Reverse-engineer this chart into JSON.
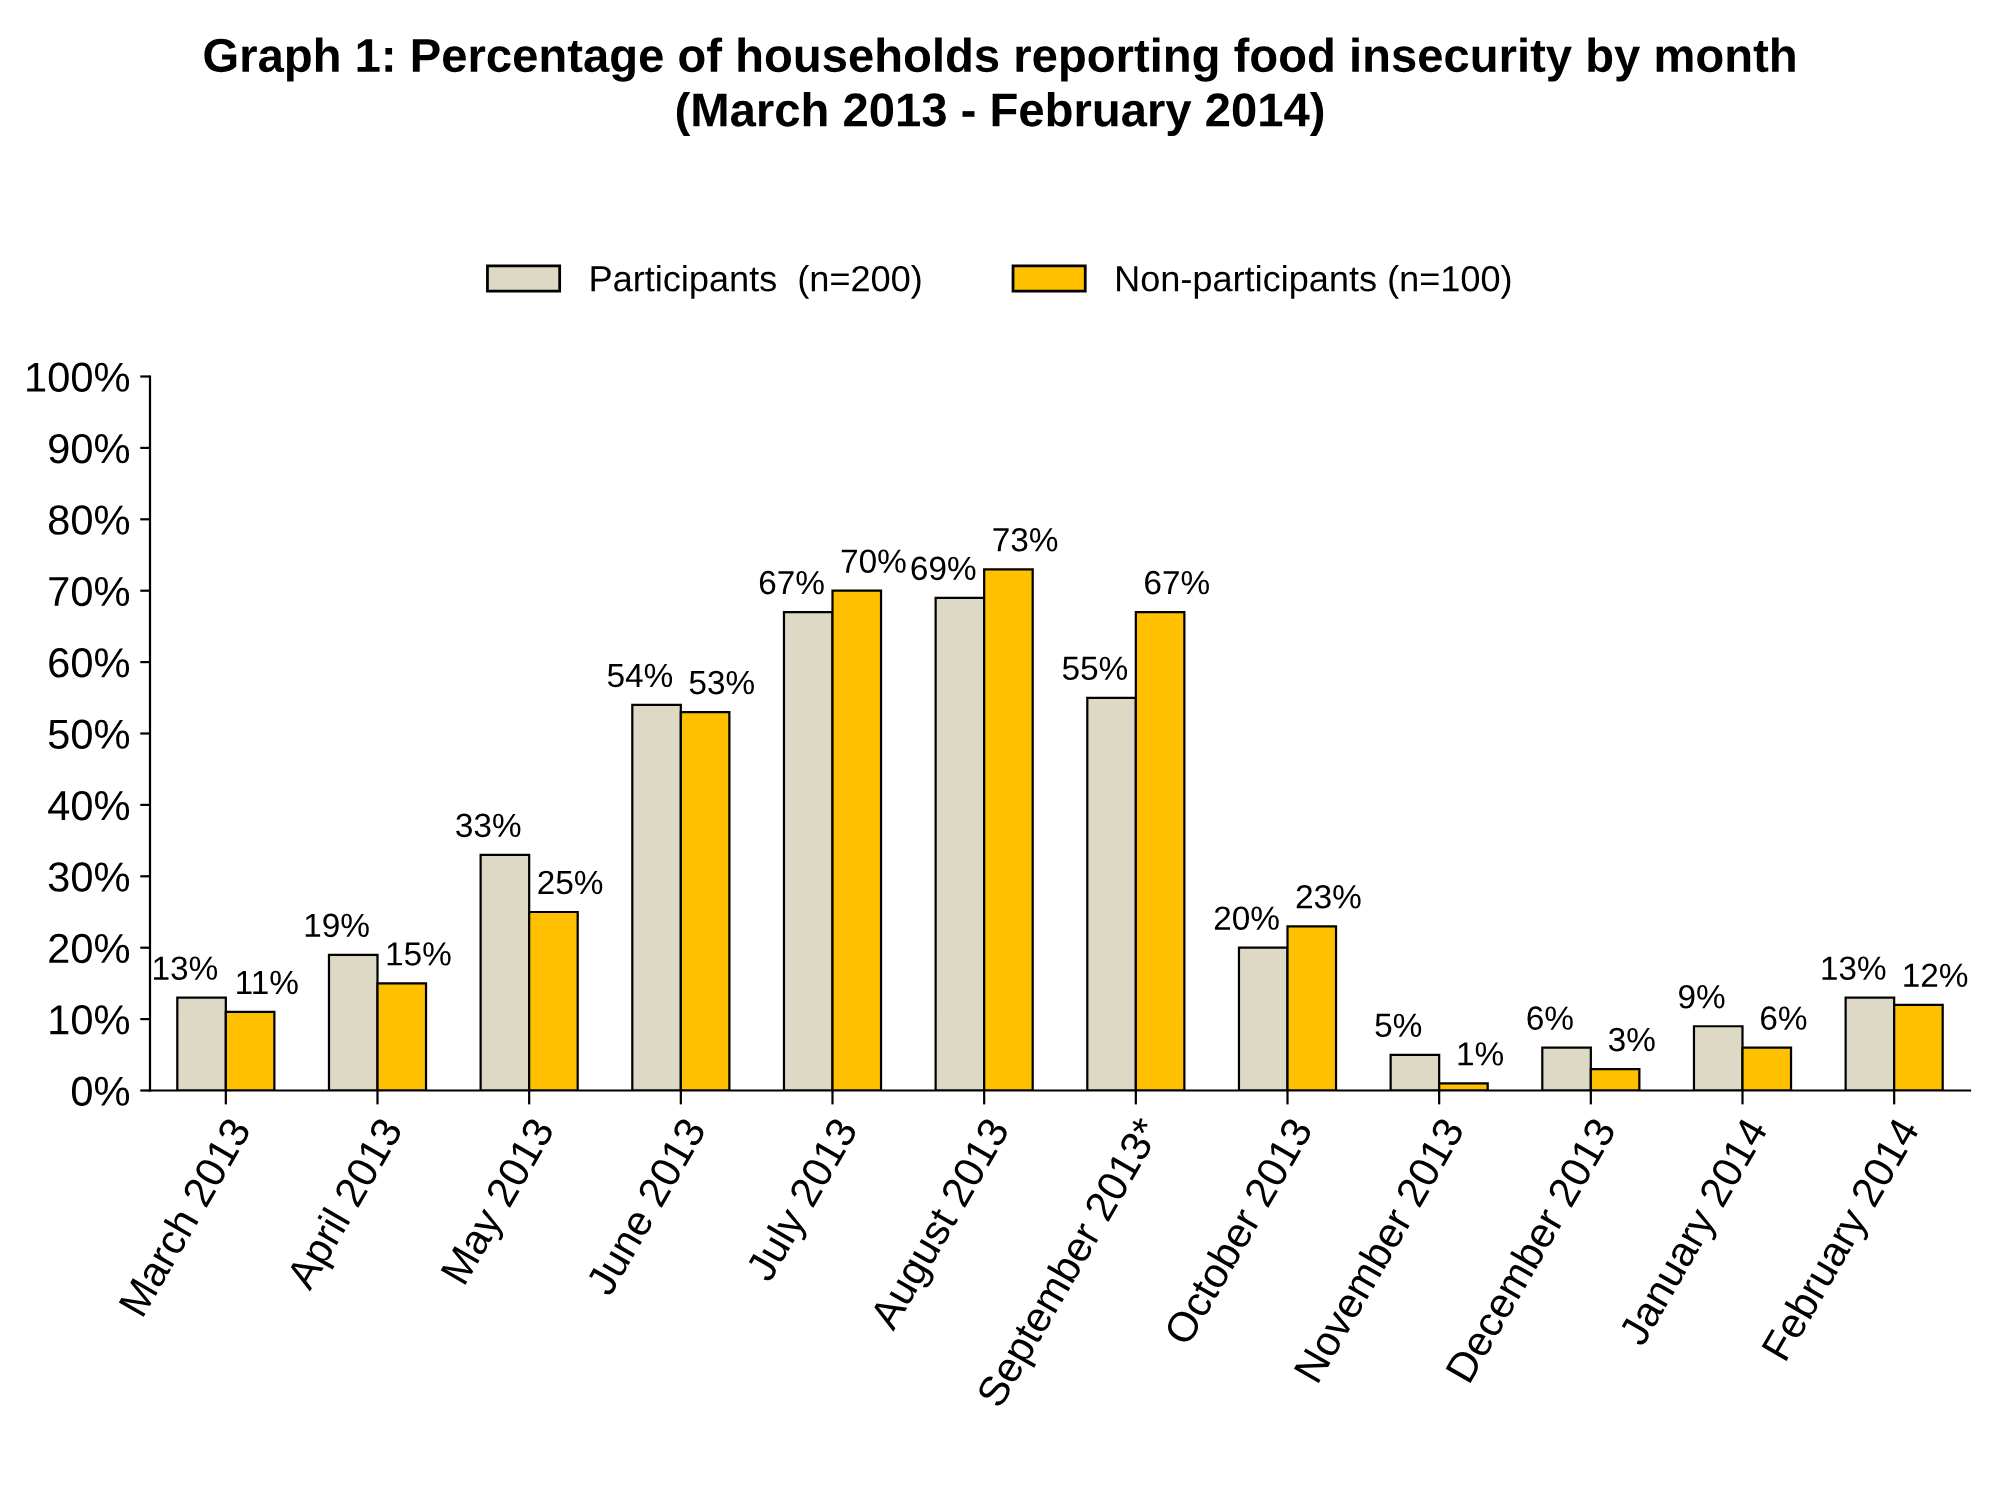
{
  "chart_data": {
    "type": "bar",
    "title": "Graph 1: Percentage of households reporting food insecurity by month\n(March 2013 - February 2014)",
    "categories": [
      "March 2013",
      "April 2013",
      "May 2013",
      "June 2013",
      "July 2013",
      "August 2013",
      "September 2013*",
      "October 2013",
      "November 2013",
      "December 2013",
      "January 2014",
      "February 2014"
    ],
    "series": [
      {
        "name": "Participants  (n=200)",
        "color": "#ddd9c4",
        "values": [
          13,
          19,
          33,
          54,
          67,
          69,
          55,
          20,
          5,
          6,
          9,
          13
        ],
        "value_labels": [
          "13%",
          "19%",
          "33%",
          "54%",
          "67%",
          "69%",
          "55%",
          "20%",
          "5%",
          "6%",
          "9%",
          "13%"
        ]
      },
      {
        "name": "Non-participants (n=100)",
        "color": "#ffc000",
        "values": [
          11,
          15,
          25,
          53,
          70,
          73,
          67,
          23,
          1,
          3,
          6,
          12
        ],
        "value_labels": [
          "11%",
          "15%",
          "25%",
          "53%",
          "70%",
          "73%",
          "67%",
          "23%",
          "1%",
          "3%",
          "6%",
          "12%"
        ]
      }
    ],
    "ylim": [
      0,
      100
    ],
    "yticks": [
      {
        "value": 0,
        "label": "0%"
      },
      {
        "value": 10,
        "label": "10%"
      },
      {
        "value": 20,
        "label": "20%"
      },
      {
        "value": 30,
        "label": "30%"
      },
      {
        "value": 40,
        "label": "40%"
      },
      {
        "value": 50,
        "label": "50%"
      },
      {
        "value": 60,
        "label": "60%"
      },
      {
        "value": 70,
        "label": "70%"
      },
      {
        "value": 80,
        "label": "80%"
      },
      {
        "value": 90,
        "label": "90%"
      },
      {
        "value": 100,
        "label": "100%"
      }
    ],
    "grid": false,
    "legend": "top"
  }
}
